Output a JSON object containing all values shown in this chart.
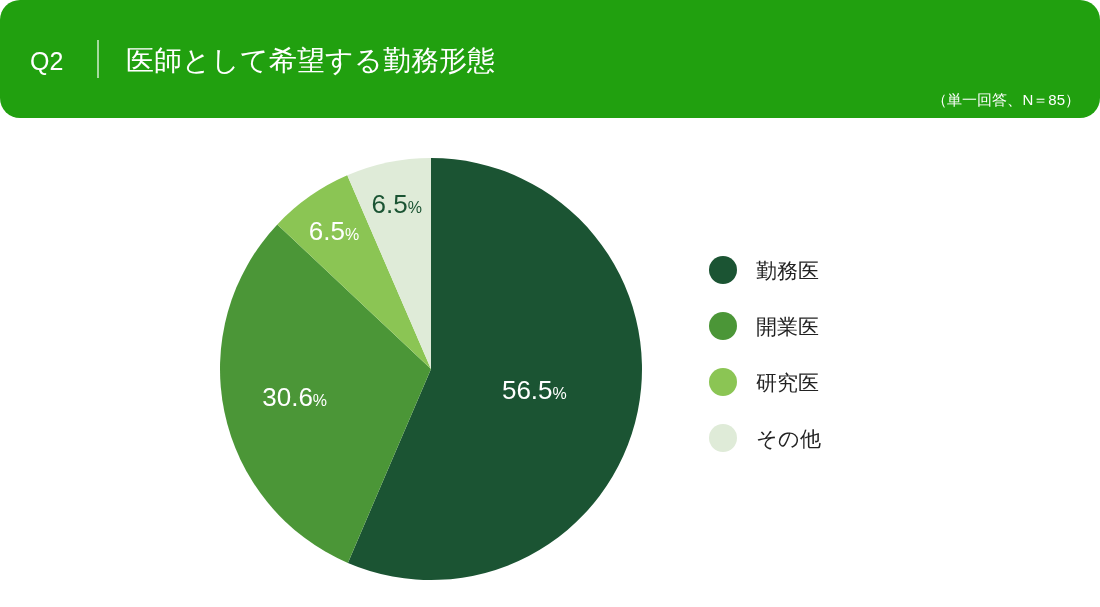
{
  "chart_data": {
    "type": "pie",
    "title": "医師として希望する勤務形態",
    "subtitle": "（単一回答、N＝85）",
    "annotations": [
      "Q2"
    ],
    "categories": [
      "勤務医",
      "開業医",
      "研究医",
      "その他"
    ],
    "values": [
      56.5,
      30.6,
      6.5,
      6.5
    ],
    "value_labels": [
      "56.5%",
      "30.6%",
      "6.5%",
      "6.5%"
    ],
    "colors": [
      "#1b5433",
      "#4b9637",
      "#8bc554",
      "#dfebd8"
    ],
    "legend": "right"
  }
}
